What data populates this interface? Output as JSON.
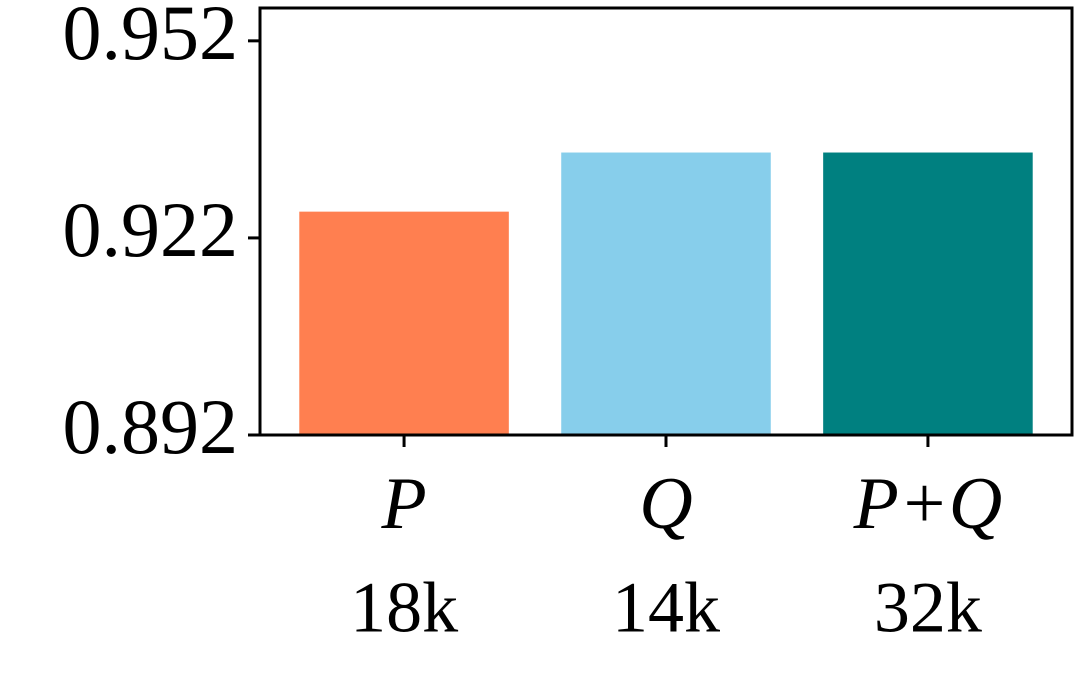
{
  "chart_data": {
    "type": "bar",
    "categories": [
      "P",
      "Q",
      "P+Q"
    ],
    "category_sublabels": [
      "18k",
      "14k",
      "32k"
    ],
    "values": [
      0.926,
      0.935,
      0.935
    ],
    "colors": [
      "#ff7f50",
      "#87ceeb",
      "#008080"
    ],
    "ylim": [
      0.892,
      0.957
    ],
    "yticks": [
      0.892,
      0.922,
      0.952
    ]
  }
}
